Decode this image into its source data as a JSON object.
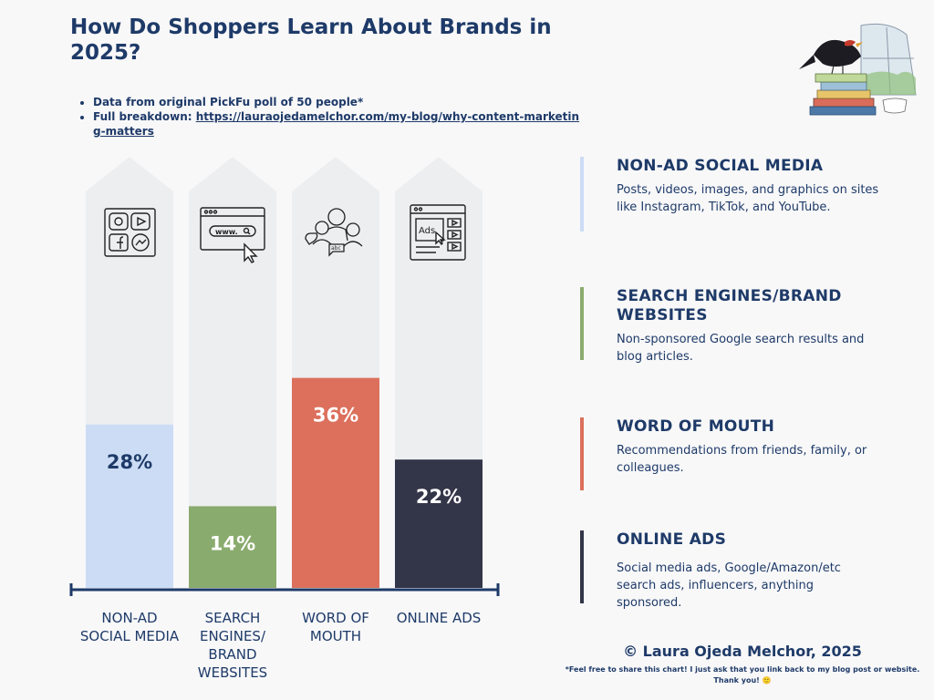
{
  "title": "How Do Shoppers Learn About Brands in 2025?",
  "notes": {
    "bullet1": "Data from original PickFu poll of 50 people*",
    "bullet2_prefix": "Full breakdown: ",
    "bullet2_link": "https://lauraojedamelchor.com/my-blog/why-content-marketing-matters"
  },
  "chart_data": {
    "type": "bar",
    "title": "How Do Shoppers Learn About Brands in 2025?",
    "categories": [
      "NON-AD SOCIAL MEDIA",
      "SEARCH ENGINES/ BRAND WEBSITES",
      "WORD OF MOUTH",
      "ONLINE ADS"
    ],
    "values": [
      28,
      14,
      36,
      22
    ],
    "value_labels": [
      "28%",
      "14%",
      "36%",
      "22%"
    ],
    "ylim": [
      0,
      50
    ],
    "unit": "%",
    "colors": [
      "#ccdcf5",
      "#8aab6e",
      "#dc705c",
      "#333548"
    ],
    "label_colors": [
      "#1e3a68",
      "#ffffff",
      "#ffffff",
      "#ffffff"
    ],
    "track_color": "#edeef0",
    "axis_color": "#1e3a68"
  },
  "category_labels": {
    "c1": "NON-AD SOCIAL MEDIA",
    "c2": "SEARCH ENGINES/ BRAND WEBSITES",
    "c3": "WORD OF MOUTH",
    "c4": "ONLINE ADS"
  },
  "icons": [
    "social-media-grid-icon",
    "browser-search-icon",
    "people-talking-icon",
    "ads-webpage-icon"
  ],
  "legend": [
    {
      "title": "NON-AD SOCIAL MEDIA",
      "description": "Posts, videos, images, and graphics on sites like Instagram, TikTok, and YouTube.",
      "color": "#ccdcf5"
    },
    {
      "title": "SEARCH ENGINES/BRAND WEBSITES",
      "description": "Non-sponsored Google search results and blog articles.",
      "color": "#8aab6e"
    },
    {
      "title": "WORD OF MOUTH",
      "description": "Recommendations from friends, family, or colleagues.",
      "color": "#dc705c"
    },
    {
      "title": "ONLINE ADS",
      "description": "Social media ads, Google/Amazon/etc search ads, influencers, anything sponsored.",
      "color": "#333548"
    }
  ],
  "copyright": "© Laura Ojeda Melchor, 2025",
  "fineprint": "*Feel free to share this chart! I just ask that you link back to my blog post or website. Thank you! 🙂",
  "illustration": "bird-and-books-illustration"
}
